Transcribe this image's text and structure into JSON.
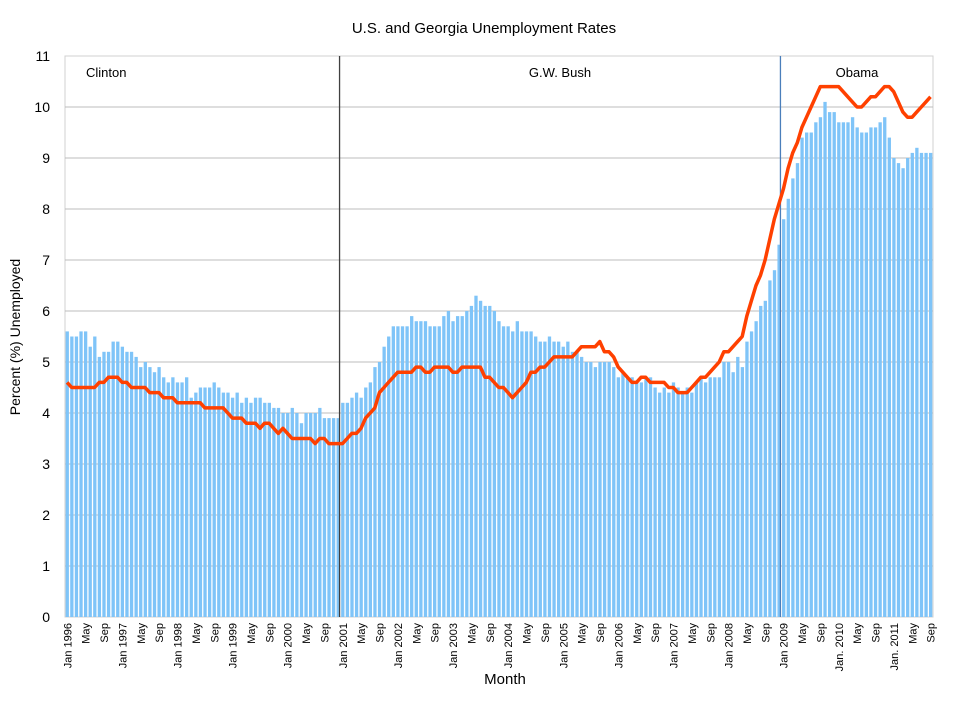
{
  "chart_data": {
    "type": "bar+line",
    "title": "U.S. and Georgia Unemployment Rates",
    "xlabel": "Month",
    "ylabel": "Percent (%) Unemployed",
    "ylim": [
      0,
      11
    ],
    "yticks": [
      0,
      1,
      2,
      3,
      4,
      5,
      6,
      7,
      8,
      9,
      10,
      11
    ],
    "grid": true,
    "legend": "none",
    "start_month": "Jan 1996",
    "end_month": "Sep 2011",
    "x_tick_labels": [
      "Jan 1996",
      "May",
      "Sep",
      "Jan 1997",
      "May",
      "Sep",
      "Jan 1998",
      "May",
      "Sep",
      "Jan 1999",
      "May",
      "Sep",
      "Jan 2000",
      "May",
      "Sep",
      "Jan 2001",
      "May",
      "Sep",
      "Jan 2002",
      "May",
      "Sep",
      "Jan 2003",
      "May",
      "Sep",
      "Jan 2004",
      "May",
      "Sep",
      "Jan 2005",
      "May",
      "Sep",
      "Jan 2006",
      "May",
      "Sep",
      "Jan 2007",
      "May",
      "Sep",
      "Jan 2008",
      "May",
      "Sep",
      "Jan 2009",
      "May",
      "Sep",
      "Jan. 2010",
      "May",
      "Sep",
      "Jan. 2011",
      "May",
      "Sep"
    ],
    "series": [
      {
        "type": "bar",
        "color": "#7fc4f8",
        "values": [
          5.6,
          5.5,
          5.5,
          5.6,
          5.6,
          5.3,
          5.5,
          5.1,
          5.2,
          5.2,
          5.4,
          5.4,
          5.3,
          5.2,
          5.2,
          5.1,
          4.9,
          5.0,
          4.9,
          4.8,
          4.9,
          4.7,
          4.6,
          4.7,
          4.6,
          4.6,
          4.7,
          4.3,
          4.4,
          4.5,
          4.5,
          4.5,
          4.6,
          4.5,
          4.4,
          4.4,
          4.3,
          4.4,
          4.2,
          4.3,
          4.2,
          4.3,
          4.3,
          4.2,
          4.2,
          4.1,
          4.1,
          4.0,
          4.0,
          4.1,
          4.0,
          3.8,
          4.0,
          4.0,
          4.0,
          4.1,
          3.9,
          3.9,
          3.9,
          3.9,
          4.2,
          4.2,
          4.3,
          4.4,
          4.3,
          4.5,
          4.6,
          4.9,
          5.0,
          5.3,
          5.5,
          5.7,
          5.7,
          5.7,
          5.7,
          5.9,
          5.8,
          5.8,
          5.8,
          5.7,
          5.7,
          5.7,
          5.9,
          6.0,
          5.8,
          5.9,
          5.9,
          6.0,
          6.1,
          6.3,
          6.2,
          6.1,
          6.1,
          6.0,
          5.8,
          5.7,
          5.7,
          5.6,
          5.8,
          5.6,
          5.6,
          5.6,
          5.5,
          5.4,
          5.4,
          5.5,
          5.4,
          5.4,
          5.3,
          5.4,
          5.2,
          5.2,
          5.1,
          5.0,
          5.0,
          4.9,
          5.0,
          5.0,
          5.0,
          4.9,
          4.7,
          4.8,
          4.7,
          4.7,
          4.6,
          4.6,
          4.7,
          4.7,
          4.5,
          4.4,
          4.5,
          4.4,
          4.6,
          4.5,
          4.4,
          4.5,
          4.4,
          4.6,
          4.7,
          4.6,
          4.7,
          4.7,
          4.7,
          5.0,
          5.0,
          4.8,
          5.1,
          4.9,
          5.4,
          5.6,
          5.8,
          6.1,
          6.2,
          6.6,
          6.8,
          7.3,
          7.8,
          8.2,
          8.6,
          8.9,
          9.4,
          9.5,
          9.5,
          9.7,
          9.8,
          10.1,
          9.9,
          9.9,
          9.7,
          9.7,
          9.7,
          9.8,
          9.6,
          9.5,
          9.5,
          9.6,
          9.6,
          9.7,
          9.8,
          9.4,
          9.0,
          8.9,
          8.8,
          9.0,
          9.1,
          9.2,
          9.1,
          9.1,
          9.1
        ]
      },
      {
        "type": "line",
        "color": "#ff4000",
        "values": [
          4.6,
          4.5,
          4.5,
          4.5,
          4.5,
          4.5,
          4.5,
          4.6,
          4.6,
          4.7,
          4.7,
          4.7,
          4.6,
          4.6,
          4.5,
          4.5,
          4.5,
          4.5,
          4.4,
          4.4,
          4.4,
          4.3,
          4.3,
          4.3,
          4.2,
          4.2,
          4.2,
          4.2,
          4.2,
          4.2,
          4.1,
          4.1,
          4.1,
          4.1,
          4.1,
          4.0,
          3.9,
          3.9,
          3.9,
          3.8,
          3.8,
          3.8,
          3.7,
          3.8,
          3.8,
          3.7,
          3.6,
          3.7,
          3.6,
          3.5,
          3.5,
          3.5,
          3.5,
          3.5,
          3.4,
          3.5,
          3.5,
          3.4,
          3.4,
          3.4,
          3.4,
          3.5,
          3.6,
          3.6,
          3.7,
          3.9,
          4.0,
          4.1,
          4.4,
          4.5,
          4.6,
          4.7,
          4.8,
          4.8,
          4.8,
          4.8,
          4.9,
          4.9,
          4.8,
          4.8,
          4.9,
          4.9,
          4.9,
          4.9,
          4.8,
          4.8,
          4.9,
          4.9,
          4.9,
          4.9,
          4.9,
          4.7,
          4.7,
          4.6,
          4.5,
          4.5,
          4.4,
          4.3,
          4.4,
          4.5,
          4.6,
          4.8,
          4.8,
          4.9,
          4.9,
          5.0,
          5.1,
          5.1,
          5.1,
          5.1,
          5.1,
          5.2,
          5.3,
          5.3,
          5.3,
          5.3,
          5.4,
          5.2,
          5.2,
          5.1,
          4.9,
          4.8,
          4.7,
          4.6,
          4.6,
          4.7,
          4.7,
          4.6,
          4.6,
          4.6,
          4.6,
          4.5,
          4.5,
          4.4,
          4.4,
          4.4,
          4.5,
          4.6,
          4.7,
          4.7,
          4.8,
          4.9,
          5.0,
          5.2,
          5.2,
          5.3,
          5.4,
          5.5,
          5.9,
          6.2,
          6.5,
          6.7,
          7.0,
          7.4,
          7.8,
          8.1,
          8.4,
          8.8,
          9.1,
          9.3,
          9.6,
          9.8,
          10.0,
          10.2,
          10.4,
          10.4,
          10.4,
          10.4,
          10.4,
          10.3,
          10.2,
          10.1,
          10.0,
          10.0,
          10.1,
          10.2,
          10.2,
          10.3,
          10.4,
          10.4,
          10.3,
          10.1,
          9.9,
          9.8,
          9.8,
          9.9,
          10.0,
          10.1,
          10.2
        ]
      }
    ],
    "annotations": [
      {
        "text": "Clinton"
      },
      {
        "text": "G.W. Bush"
      },
      {
        "text": "Obama"
      }
    ],
    "dividers": [
      {
        "month": "Jan 2001",
        "color": "#404040"
      },
      {
        "month": "Jan 2009",
        "color": "#4a7ebb"
      }
    ]
  }
}
